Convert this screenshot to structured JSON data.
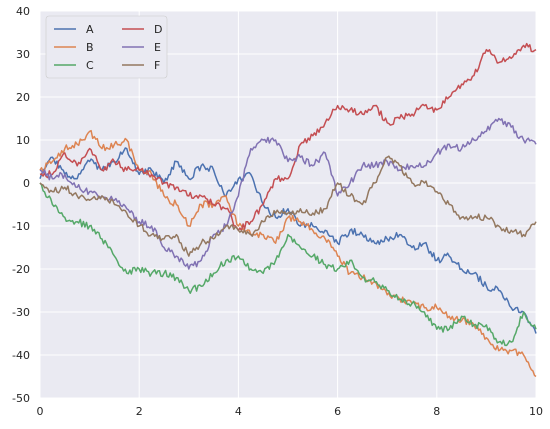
{
  "chart_data": {
    "type": "line",
    "xlim": [
      0,
      10
    ],
    "ylim": [
      -50,
      40
    ],
    "x_ticks": [
      0,
      2,
      4,
      6,
      8,
      10
    ],
    "y_ticks": [
      -50,
      -40,
      -30,
      -20,
      -10,
      0,
      10,
      20,
      30,
      40
    ],
    "grid": true,
    "legend": {
      "placement": "top-left",
      "columns": 2
    },
    "colors": {
      "background": "#eaeaf2",
      "grid": "#ffffff",
      "A": "#4c72b0",
      "B": "#dd8452",
      "C": "#55a868",
      "D": "#c44e52",
      "E": "#8172b3",
      "F": "#937860"
    },
    "series": [
      {
        "name": "A",
        "x": [
          0,
          0.25,
          0.5,
          0.75,
          1,
          1.25,
          1.5,
          1.75,
          2,
          2.25,
          2.5,
          2.75,
          3,
          3.25,
          3.5,
          3.75,
          4,
          4.25,
          4.5,
          4.75,
          5,
          5.25,
          5.5,
          5.75,
          6,
          6.25,
          6.5,
          6.75,
          7,
          7.25,
          7.5,
          7.75,
          8,
          8.25,
          8.5,
          8.75,
          9,
          9.25,
          9.5,
          9.75,
          10
        ],
        "y": [
          1,
          6,
          2,
          1,
          5,
          3,
          5,
          8,
          2,
          3,
          0,
          5,
          1,
          4,
          3,
          -3,
          1,
          2,
          -5,
          -8,
          -6,
          -10,
          -10,
          -11,
          -14,
          -11,
          -12,
          -14,
          -13,
          -12,
          -15,
          -14,
          -18,
          -17,
          -20,
          -21,
          -24,
          -25,
          -29,
          -30,
          -35
        ]
      },
      {
        "name": "B",
        "x": [
          0,
          0.25,
          0.5,
          0.75,
          1,
          1.25,
          1.5,
          1.75,
          2,
          2.25,
          2.5,
          2.75,
          3,
          3.25,
          3.5,
          3.75,
          4,
          4.25,
          4.5,
          4.75,
          5,
          5.25,
          5.5,
          5.75,
          6,
          6.25,
          6.5,
          6.75,
          7,
          7.25,
          7.5,
          7.75,
          8,
          8.25,
          8.5,
          8.75,
          9,
          9.25,
          9.5,
          9.75,
          10
        ],
        "y": [
          3,
          5,
          8,
          9,
          12,
          8,
          9,
          10,
          3,
          2,
          -3,
          -5,
          -10,
          -5,
          -5,
          -3,
          -10,
          -12,
          -12,
          -14,
          -8,
          -9,
          -11,
          -13,
          -17,
          -21,
          -22,
          -23,
          -26,
          -27,
          -28,
          -29,
          -29,
          -31,
          -32,
          -33,
          -36,
          -39,
          -39,
          -40,
          -45
        ]
      },
      {
        "name": "C",
        "x": [
          0,
          0.25,
          0.5,
          0.75,
          1,
          1.25,
          1.5,
          1.75,
          2,
          2.25,
          2.5,
          2.75,
          3,
          3.25,
          3.5,
          3.75,
          4,
          4.25,
          4.5,
          4.75,
          5,
          5.25,
          5.5,
          5.75,
          6,
          6.25,
          6.5,
          6.75,
          7,
          7.25,
          7.5,
          7.75,
          8,
          8.25,
          8.5,
          8.75,
          9,
          9.25,
          9.5,
          9.75,
          10
        ],
        "y": [
          0,
          -5,
          -8,
          -9,
          -10,
          -13,
          -17,
          -21,
          -20,
          -21,
          -21,
          -22,
          -25,
          -24,
          -21,
          -18,
          -17,
          -20,
          -21,
          -18,
          -12,
          -15,
          -17,
          -19,
          -20,
          -18,
          -22,
          -23,
          -25,
          -27,
          -28,
          -30,
          -34,
          -34,
          -31,
          -33,
          -33,
          -37,
          -37,
          -30,
          -34
        ]
      },
      {
        "name": "D",
        "x": [
          0,
          0.25,
          0.5,
          0.75,
          1,
          1.25,
          1.5,
          1.75,
          2,
          2.25,
          2.5,
          2.75,
          3,
          3.25,
          3.5,
          3.75,
          4,
          4.25,
          4.5,
          4.75,
          5,
          5.25,
          5.5,
          5.75,
          6,
          6.25,
          6.5,
          6.75,
          7,
          7.25,
          7.5,
          7.75,
          8,
          8.25,
          8.5,
          8.75,
          9,
          9.25,
          9.5,
          9.75,
          10
        ],
        "y": [
          2,
          2,
          7,
          4,
          8,
          3,
          5,
          3,
          3,
          2,
          0,
          -1,
          -3,
          -3,
          -5,
          -6,
          -11,
          -9,
          -5,
          1,
          1,
          9,
          11,
          14,
          18,
          17,
          16,
          18,
          14,
          15,
          16,
          18,
          17,
          20,
          23,
          25,
          31,
          28,
          29,
          32,
          31
        ]
      },
      {
        "name": "E",
        "x": [
          0,
          0.25,
          0.5,
          0.75,
          1,
          1.25,
          1.5,
          1.75,
          2,
          2.25,
          2.5,
          2.75,
          3,
          3.25,
          3.5,
          3.75,
          4,
          4.25,
          4.5,
          4.75,
          5,
          5.25,
          5.5,
          5.75,
          6,
          6.25,
          6.5,
          6.75,
          7,
          7.25,
          7.5,
          7.75,
          8,
          8.25,
          8.5,
          8.75,
          9,
          9.25,
          9.5,
          9.75,
          10
        ],
        "y": [
          3,
          1,
          2,
          -1,
          -2,
          -3,
          -4,
          -6,
          -9,
          -10,
          -15,
          -17,
          -20,
          -18,
          -12,
          -10,
          -3,
          8,
          10,
          10,
          5,
          6,
          4,
          7,
          -3,
          0,
          4,
          4,
          5,
          3,
          4,
          4,
          7,
          9,
          8,
          10,
          12,
          15,
          13,
          10,
          9
        ]
      },
      {
        "name": "F",
        "x": [
          0,
          0.25,
          0.5,
          0.75,
          1,
          1.25,
          1.5,
          1.75,
          2,
          2.25,
          2.5,
          2.75,
          3,
          3.25,
          3.5,
          3.75,
          4,
          4.25,
          4.5,
          4.75,
          5,
          5.25,
          5.5,
          5.75,
          6,
          6.25,
          6.5,
          6.75,
          7,
          7.25,
          7.5,
          7.75,
          8,
          8.25,
          8.5,
          8.75,
          9,
          9.25,
          9.5,
          9.75,
          10
        ],
        "y": [
          0,
          -2,
          -1,
          -3,
          -4,
          -3,
          -5,
          -7,
          -10,
          -12,
          -13,
          -12,
          -17,
          -14,
          -13,
          -10,
          -11,
          -12,
          -9,
          -7,
          -7,
          -6,
          -7,
          -6,
          0,
          -3,
          -5,
          0,
          6,
          4,
          0,
          0,
          -2,
          -5,
          -8,
          -8,
          -8,
          -10,
          -11,
          -12,
          -9
        ]
      }
    ]
  }
}
